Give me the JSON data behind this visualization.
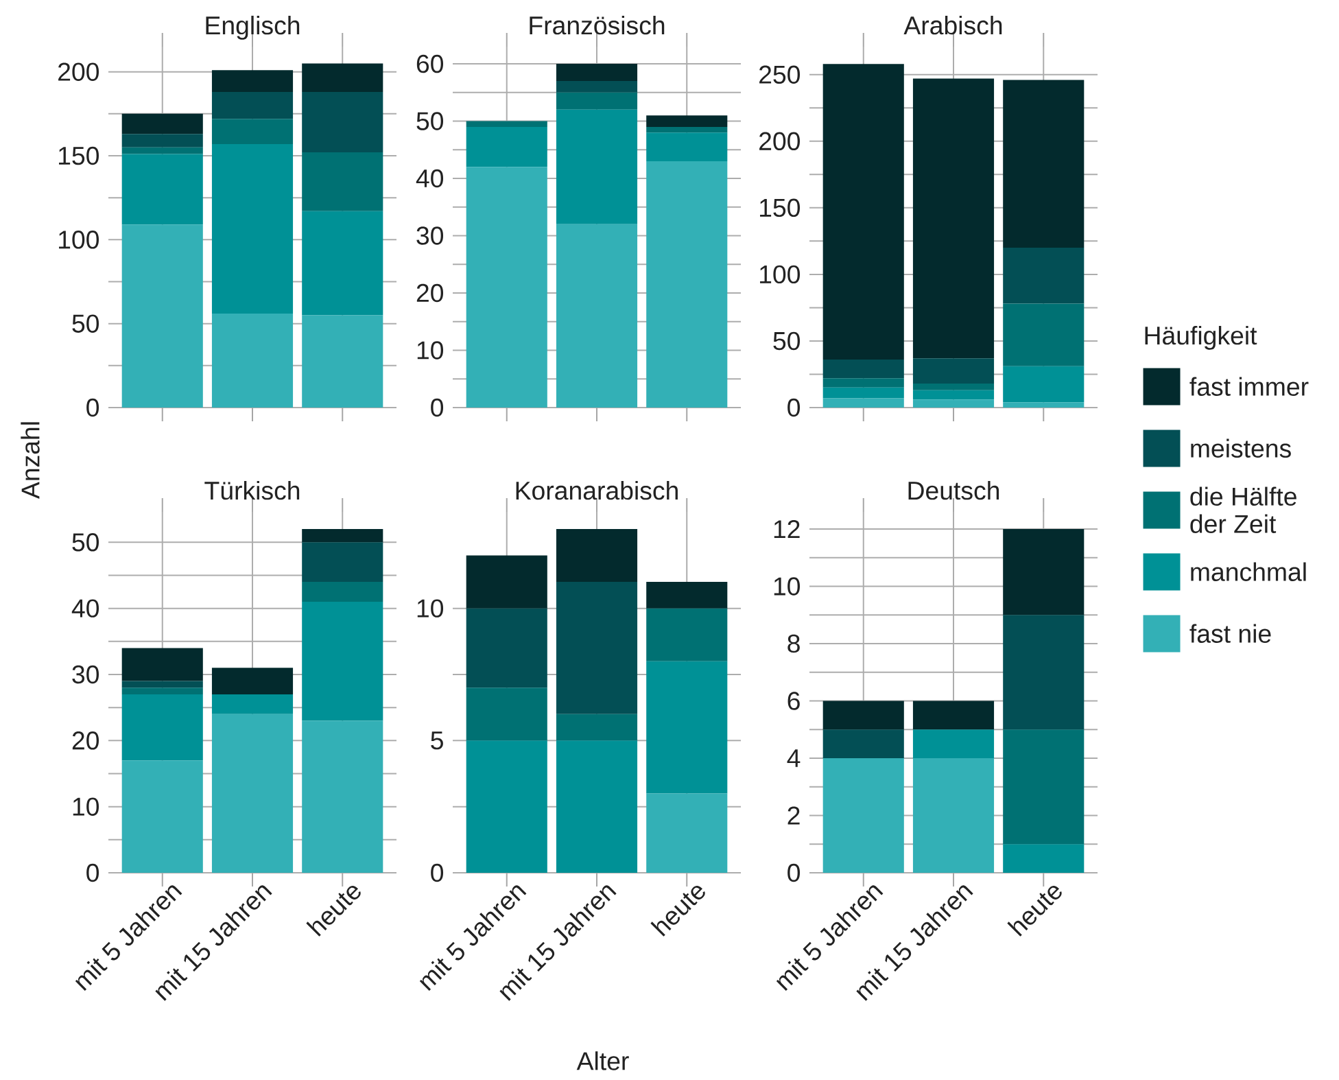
{
  "chart_data": [
    {
      "type": "bar",
      "stacked": true,
      "title": "Englisch",
      "ylabel": "Anzahl",
      "categories": [
        null,
        null,
        null
      ],
      "series": [
        {
          "color": "#33b0b6",
          "values": [
            109,
            56,
            55
          ]
        },
        {
          "color": "#009196",
          "values": [
            42,
            101,
            62
          ]
        },
        {
          "color": "#007173",
          "values": [
            4,
            15,
            35
          ]
        },
        {
          "color": "#034f55",
          "values": [
            8,
            16,
            36
          ]
        },
        {
          "color": "#032a2d",
          "values": [
            12,
            13,
            17
          ]
        }
      ],
      "ylim": [
        0,
        215
      ],
      "yticks": [
        0,
        50,
        100,
        150,
        200
      ],
      "grid": true,
      "tick_labels": "y"
    },
    {
      "type": "bar",
      "stacked": true,
      "title": "Französisch",
      "categories": [
        null,
        null,
        null
      ],
      "series": [
        {
          "color": "#33b0b6",
          "values": [
            42,
            32,
            43
          ]
        },
        {
          "color": "#009196",
          "values": [
            7,
            20,
            5
          ]
        },
        {
          "color": "#007173",
          "values": [
            1,
            3,
            1
          ]
        },
        {
          "color": "#034f55",
          "values": [
            0,
            2,
            0
          ]
        },
        {
          "color": "#032a2d",
          "values": [
            0,
            3,
            2
          ]
        }
      ],
      "ylim": [
        0,
        63
      ],
      "yticks": [
        0,
        10,
        20,
        30,
        40,
        50,
        60
      ],
      "grid": true,
      "tick_labels": "y"
    },
    {
      "type": "bar",
      "stacked": true,
      "title": "Arabisch",
      "legend": "right",
      "legend_title": "Häufigkeit",
      "categories": [
        null,
        null,
        null
      ],
      "series": [
        {
          "name": "fast nie",
          "color": "#33b0b6",
          "values": [
            7,
            6,
            4
          ]
        },
        {
          "name": "manchmal",
          "color": "#009196",
          "values": [
            8,
            7,
            27
          ]
        },
        {
          "name": "die Hälfte der Zeit",
          "color": "#007173",
          "values": [
            7,
            5,
            47
          ]
        },
        {
          "name": "meistens",
          "color": "#034f55",
          "values": [
            14,
            19,
            42
          ]
        },
        {
          "name": "fast immer",
          "color": "#032a2d",
          "values": [
            222,
            210,
            126
          ]
        }
      ],
      "ylim": [
        0,
        271
      ],
      "yticks": [
        0,
        50,
        100,
        150,
        200,
        250
      ],
      "grid": true,
      "tick_labels": "y"
    },
    {
      "type": "bar",
      "stacked": true,
      "title": "Türkisch",
      "categories": [
        "mit 5 Jahren",
        "mit 15 Jahren",
        "heute"
      ],
      "series": [
        {
          "color": "#33b0b6",
          "values": [
            17,
            24,
            23
          ]
        },
        {
          "color": "#009196",
          "values": [
            10,
            3,
            18
          ]
        },
        {
          "color": "#007173",
          "values": [
            1,
            0,
            3
          ]
        },
        {
          "color": "#034f55",
          "values": [
            1,
            0,
            6
          ]
        },
        {
          "color": "#032a2d",
          "values": [
            5,
            4,
            2
          ]
        }
      ],
      "ylim": [
        0,
        54.6
      ],
      "yticks": [
        0,
        10,
        20,
        30,
        40,
        50
      ],
      "grid": true
    },
    {
      "type": "bar",
      "stacked": true,
      "title": "Koranarabisch",
      "xlabel": "Alter",
      "categories": [
        "mit 5 Jahren",
        "mit 15 Jahren",
        "heute"
      ],
      "series": [
        {
          "color": "#33b0b6",
          "values": [
            0,
            0,
            3
          ]
        },
        {
          "color": "#009196",
          "values": [
            5,
            5,
            5
          ]
        },
        {
          "color": "#007173",
          "values": [
            2,
            1,
            2
          ]
        },
        {
          "color": "#034f55",
          "values": [
            3,
            5,
            0
          ]
        },
        {
          "color": "#032a2d",
          "values": [
            2,
            2,
            1
          ]
        }
      ],
      "ylim": [
        0,
        13.65
      ],
      "yticks": [
        0,
        5,
        10
      ],
      "grid": true
    },
    {
      "type": "bar",
      "stacked": true,
      "title": "Deutsch",
      "categories": [
        "mit 5 Jahren",
        "mit 15 Jahren",
        "heute"
      ],
      "series": [
        {
          "color": "#33b0b6",
          "values": [
            4,
            4,
            0
          ]
        },
        {
          "color": "#009196",
          "values": [
            0,
            1,
            1
          ]
        },
        {
          "color": "#007173",
          "values": [
            0,
            0,
            4
          ]
        },
        {
          "color": "#034f55",
          "values": [
            1,
            0,
            4
          ]
        },
        {
          "color": "#032a2d",
          "values": [
            1,
            1,
            3
          ]
        }
      ],
      "ylim": [
        0,
        12.6
      ],
      "yticks": [
        0,
        2,
        4,
        6,
        8,
        10,
        12
      ],
      "grid": true
    }
  ]
}
